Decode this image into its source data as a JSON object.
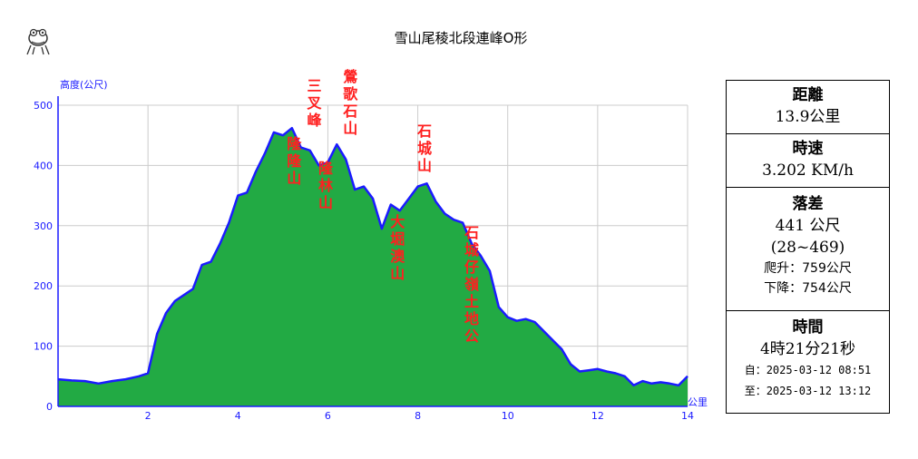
{
  "chart_data": {
    "type": "area",
    "title": "雪山尾稜北段連峰O形",
    "ylabel": "高度(公尺)",
    "xlabel": "公里",
    "xlim": [
      0,
      14
    ],
    "ylim": [
      0,
      500
    ],
    "xticks": [
      "2",
      "4",
      "6",
      "8",
      "10",
      "12",
      "14"
    ],
    "yticks": [
      "0",
      "100",
      "200",
      "300",
      "400",
      "500"
    ],
    "grid": true,
    "colors": {
      "fill": "#22aa44",
      "line": "#1a1aff",
      "peak_label": "#ff2020"
    },
    "x": [
      0,
      0.3,
      0.6,
      0.9,
      1.2,
      1.5,
      1.8,
      2.0,
      2.2,
      2.4,
      2.6,
      2.8,
      3.0,
      3.2,
      3.4,
      3.6,
      3.8,
      4.0,
      4.2,
      4.4,
      4.6,
      4.8,
      5.0,
      5.2,
      5.4,
      5.6,
      5.8,
      6.0,
      6.2,
      6.4,
      6.6,
      6.8,
      7.0,
      7.2,
      7.4,
      7.6,
      7.8,
      8.0,
      8.2,
      8.4,
      8.6,
      8.8,
      9.0,
      9.2,
      9.4,
      9.6,
      9.8,
      10.0,
      10.2,
      10.4,
      10.6,
      10.8,
      11.0,
      11.2,
      11.4,
      11.6,
      11.8,
      12.0,
      12.2,
      12.4,
      12.6,
      12.8,
      13.0,
      13.2,
      13.4,
      13.6,
      13.8,
      14.0
    ],
    "values": [
      45,
      43,
      42,
      38,
      42,
      45,
      50,
      55,
      120,
      155,
      175,
      185,
      195,
      235,
      240,
      270,
      305,
      350,
      355,
      390,
      420,
      455,
      450,
      462,
      430,
      425,
      400,
      405,
      435,
      410,
      360,
      365,
      345,
      295,
      335,
      325,
      345,
      365,
      370,
      340,
      320,
      310,
      305,
      270,
      250,
      225,
      165,
      148,
      142,
      145,
      140,
      125,
      110,
      95,
      70,
      58,
      60,
      62,
      58,
      55,
      50,
      35,
      42,
      38,
      40,
      38,
      35,
      50
    ],
    "peaks": [
      {
        "name": "三叉峰",
        "x": 5.7
      },
      {
        "name": "隆隆山",
        "x": 5.25
      },
      {
        "name": "隆林山",
        "x": 5.95
      },
      {
        "name": "鶯歌石山",
        "x": 6.5
      },
      {
        "name": "大堀澳山",
        "x": 7.55
      },
      {
        "name": "石城山",
        "x": 8.15
      },
      {
        "name": "石城仔嶺土地公",
        "x": 9.2
      }
    ]
  },
  "stats": {
    "distance_label": "距離",
    "distance_value": "13.9公里",
    "speed_label": "時速",
    "speed_value": "3.202 KM/h",
    "elevation_label": "落差",
    "elevation_value": "441 公尺",
    "elevation_range": "(28~469)",
    "ascent": "爬升：759公尺",
    "descent": "下降：754公尺",
    "time_label": "時間",
    "time_value": "4時21分21秒",
    "start": "自：2025-03-12 08:51",
    "end": "至：2025-03-12 13:12"
  }
}
